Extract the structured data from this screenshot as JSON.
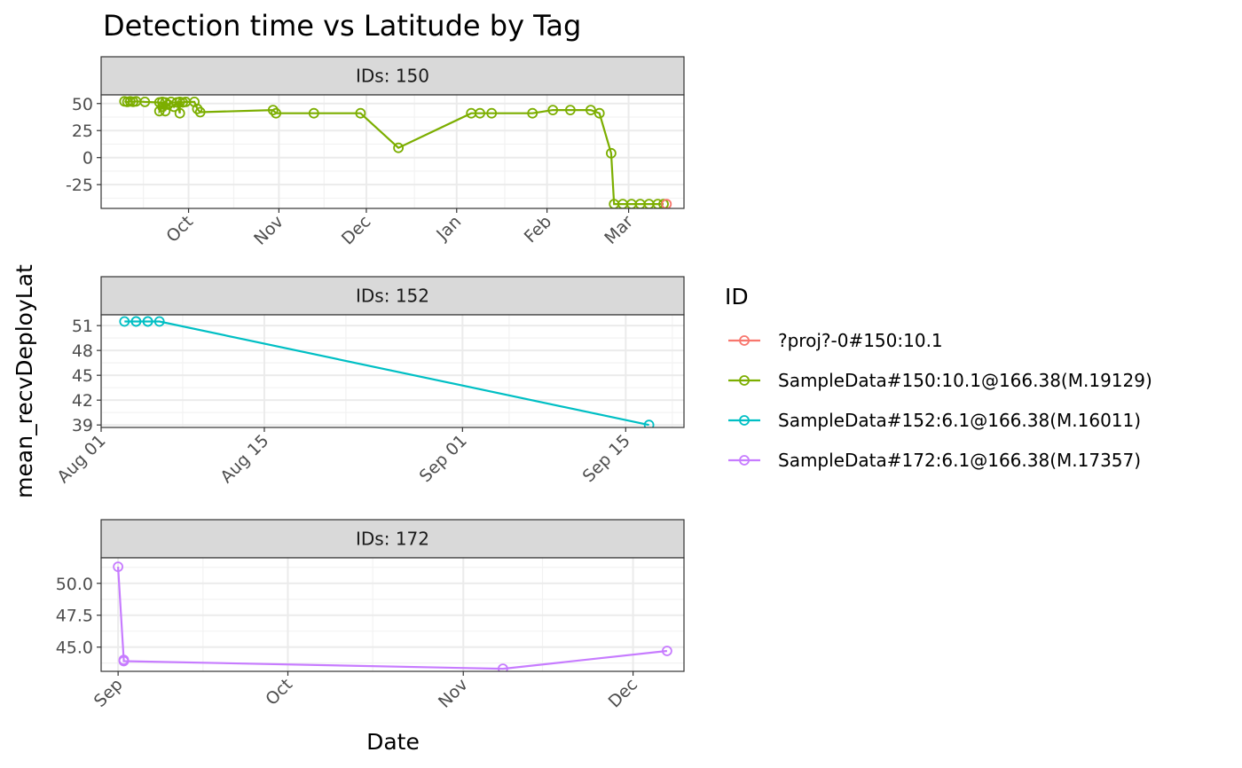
{
  "chart_data": {
    "type": "line",
    "title": "Detection time vs Latitude by Tag",
    "xlabel": "Date",
    "ylabel": "mean_recvDeployLat",
    "legend": {
      "title": "ID",
      "placement": "right",
      "entries": [
        {
          "label": "?proj?-0#150:10.1",
          "color": "#F8766D"
        },
        {
          "label": "SampleData#150:10.1@166.38(M.19129)",
          "color": "#7CAE00"
        },
        {
          "label": "SampleData#152:6.1@166.38(M.16011)",
          "color": "#00BFC4"
        },
        {
          "label": "SampleData#172:6.1@166.38(M.17357)",
          "color": "#C77CFF"
        }
      ]
    },
    "grid": true,
    "panels": [
      {
        "strip": "IDs: 150",
        "x_type": "date",
        "xlim": [
          "2016-09-01",
          "2017-03-20"
        ],
        "ylim": [
          -47,
          58
        ],
        "x_ticks": [
          {
            "date": "2016-10-01",
            "label": "Oct"
          },
          {
            "date": "2016-11-01",
            "label": "Nov"
          },
          {
            "date": "2016-12-01",
            "label": "Dec"
          },
          {
            "date": "2017-01-01",
            "label": "Jan"
          },
          {
            "date": "2017-02-01",
            "label": "Feb"
          },
          {
            "date": "2017-03-01",
            "label": "Mar"
          }
        ],
        "y_ticks": [
          {
            "value": 50,
            "label": "50"
          },
          {
            "value": 25,
            "label": "25"
          },
          {
            "value": 0,
            "label": "0"
          },
          {
            "value": -25,
            "label": "-25"
          }
        ],
        "series": [
          {
            "legend_index": 1,
            "points": [
              [
                "2016-09-09",
                52
              ],
              [
                "2016-09-10",
                51.5
              ],
              [
                "2016-09-11",
                52
              ],
              [
                "2016-09-12",
                51.6
              ],
              [
                "2016-09-13",
                52
              ],
              [
                "2016-09-16",
                51.5
              ],
              [
                "2016-09-21",
                51
              ],
              [
                "2016-09-21",
                43
              ],
              [
                "2016-09-22",
                47
              ],
              [
                "2016-09-22",
                51.5
              ],
              [
                "2016-09-23",
                43
              ],
              [
                "2016-09-23",
                51
              ],
              [
                "2016-09-24",
                49
              ],
              [
                "2016-09-25",
                51.5
              ],
              [
                "2016-09-26",
                47
              ],
              [
                "2016-09-27",
                51
              ],
              [
                "2016-09-28",
                41
              ],
              [
                "2016-09-28",
                51.5
              ],
              [
                "2016-09-29",
                51
              ],
              [
                "2016-09-30",
                51.5
              ],
              [
                "2016-10-03",
                51.5
              ],
              [
                "2016-10-04",
                45
              ],
              [
                "2016-10-05",
                42
              ],
              [
                "2016-10-30",
                44
              ],
              [
                "2016-10-31",
                41
              ],
              [
                "2016-11-13",
                41
              ],
              [
                "2016-11-29",
                41
              ],
              [
                "2016-12-12",
                9
              ],
              [
                "2017-01-06",
                41
              ],
              [
                "2017-01-09",
                41
              ],
              [
                "2017-01-13",
                41
              ],
              [
                "2017-01-27",
                41
              ],
              [
                "2017-02-03",
                44
              ],
              [
                "2017-02-09",
                44
              ],
              [
                "2017-02-16",
                44
              ],
              [
                "2017-02-19",
                41
              ],
              [
                "2017-02-23",
                4
              ],
              [
                "2017-02-24",
                -43
              ],
              [
                "2017-02-27",
                -43
              ],
              [
                "2017-03-02",
                -43
              ],
              [
                "2017-03-05",
                -43
              ],
              [
                "2017-03-08",
                -43
              ],
              [
                "2017-03-11",
                -43
              ],
              [
                "2017-03-13",
                -43
              ]
            ]
          },
          {
            "legend_index": 0,
            "points": [
              [
                "2017-03-14",
                -43
              ]
            ]
          }
        ]
      },
      {
        "strip": "IDs: 152",
        "x_type": "date",
        "xlim": [
          "2016-08-01",
          "2016-09-20"
        ],
        "ylim": [
          38.7,
          52.3
        ],
        "x_ticks": [
          {
            "date": "2016-08-01",
            "label": "Aug 01"
          },
          {
            "date": "2016-08-15",
            "label": "Aug 15"
          },
          {
            "date": "2016-09-01",
            "label": "Sep 01"
          },
          {
            "date": "2016-09-15",
            "label": "Sep 15"
          }
        ],
        "y_ticks": [
          {
            "value": 51,
            "label": "51"
          },
          {
            "value": 48,
            "label": "48"
          },
          {
            "value": 45,
            "label": "45"
          },
          {
            "value": 42,
            "label": "42"
          },
          {
            "value": 39,
            "label": "39"
          }
        ],
        "series": [
          {
            "legend_index": 2,
            "points": [
              [
                "2016-08-03",
                51.5
              ],
              [
                "2016-08-04",
                51.5
              ],
              [
                "2016-08-04",
                51.5
              ],
              [
                "2016-08-05",
                51.5
              ],
              [
                "2016-08-05",
                51.5
              ],
              [
                "2016-08-06",
                51.5
              ],
              [
                "2016-09-17",
                39
              ]
            ]
          }
        ]
      },
      {
        "strip": "IDs: 172",
        "x_type": "date",
        "xlim": [
          "2016-08-29",
          "2016-12-10"
        ],
        "ylim": [
          43.1,
          52.0
        ],
        "x_ticks": [
          {
            "date": "2016-09-01",
            "label": "Sep"
          },
          {
            "date": "2016-10-01",
            "label": "Oct"
          },
          {
            "date": "2016-11-01",
            "label": "Nov"
          },
          {
            "date": "2016-12-01",
            "label": "Dec"
          }
        ],
        "y_ticks": [
          {
            "value": 50,
            "label": "50.0"
          },
          {
            "value": 47.5,
            "label": "47.5"
          },
          {
            "value": 45,
            "label": "45.0"
          }
        ],
        "series": [
          {
            "legend_index": 3,
            "points": [
              [
                "2016-09-01",
                51.3
              ],
              [
                "2016-09-02",
                44
              ],
              [
                "2016-09-02",
                43.9
              ],
              [
                "2016-11-08",
                43.3
              ],
              [
                "2016-12-07",
                44.7
              ]
            ]
          }
        ]
      }
    ]
  }
}
